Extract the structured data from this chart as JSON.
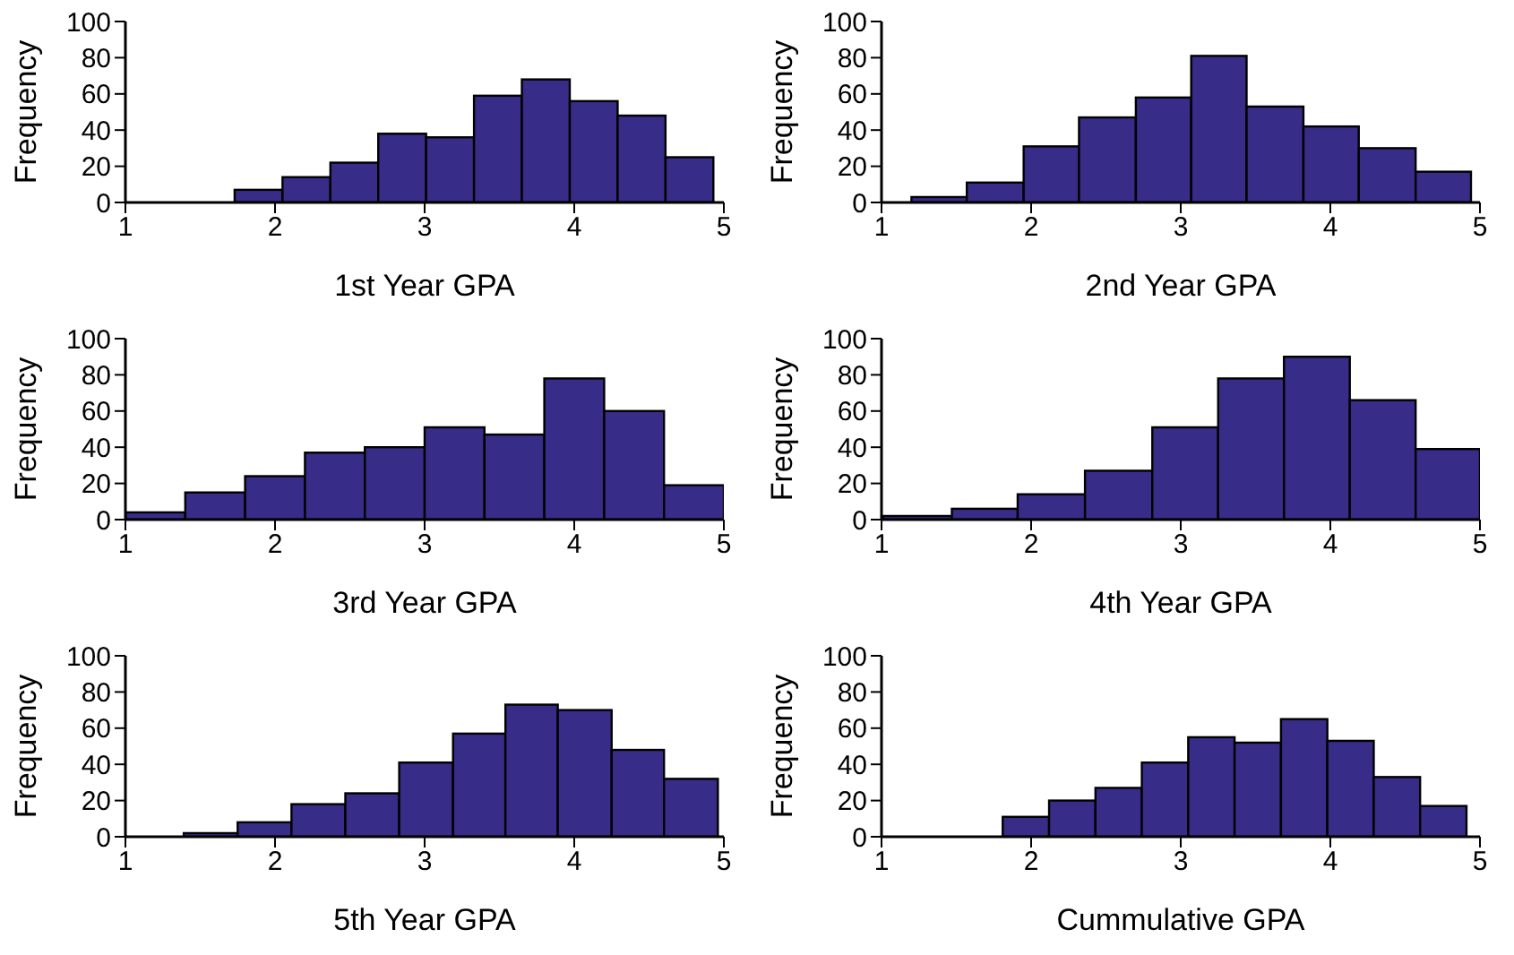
{
  "chart_data": [
    {
      "type": "histogram",
      "xlabel": "1st Year GPA",
      "ylabel": "Frequency",
      "bins": [
        1.73,
        2.05,
        2.37,
        2.69,
        3.01,
        3.33,
        3.65,
        3.97,
        4.29,
        4.61,
        4.93
      ],
      "values": [
        7,
        14,
        22,
        38,
        36,
        59,
        68,
        56,
        48,
        25
      ],
      "color": "#372c87",
      "xlim": [
        1,
        5
      ],
      "xticks": [
        1,
        2,
        3,
        4,
        5
      ],
      "ylim": [
        0,
        100
      ],
      "yticks": [
        0,
        20,
        40,
        60,
        80,
        100
      ]
    },
    {
      "type": "histogram",
      "xlabel": "2nd Year GPA",
      "ylabel": "Frequency",
      "bins": [
        1.2,
        1.57,
        1.95,
        2.32,
        2.7,
        3.07,
        3.44,
        3.82,
        4.19,
        4.57,
        4.94
      ],
      "values": [
        3,
        11,
        31,
        47,
        58,
        81,
        53,
        42,
        30,
        17
      ],
      "color": "#372c87",
      "xlim": [
        1,
        5
      ],
      "xticks": [
        1,
        2,
        3,
        4,
        5
      ],
      "ylim": [
        0,
        100
      ],
      "yticks": [
        0,
        20,
        40,
        60,
        80,
        100
      ]
    },
    {
      "type": "histogram",
      "xlabel": "3rd Year GPA",
      "ylabel": "Frequency",
      "bins": [
        1,
        1.4,
        1.8,
        2.2,
        2.6,
        3,
        3.4,
        3.8,
        4.2,
        4.6,
        5
      ],
      "values": [
        4,
        15,
        24,
        37,
        40,
        51,
        47,
        78,
        60,
        19
      ],
      "color": "#372c87",
      "xlim": [
        1,
        5
      ],
      "xticks": [
        1,
        2,
        3,
        4,
        5
      ],
      "ylim": [
        0,
        100
      ],
      "yticks": [
        0,
        20,
        40,
        60,
        80,
        100
      ]
    },
    {
      "type": "histogram",
      "xlabel": "4th Year GPA",
      "ylabel": "Frequency",
      "bins": [
        1.01,
        1.47,
        1.91,
        2.36,
        2.81,
        3.25,
        3.69,
        4.13,
        4.57,
        5
      ],
      "values": [
        2,
        6,
        14,
        27,
        51,
        78,
        90,
        66,
        39
      ],
      "color": "#372c87",
      "xlim": [
        1,
        5
      ],
      "xticks": [
        1,
        2,
        3,
        4,
        5
      ],
      "ylim": [
        0,
        100
      ],
      "yticks": [
        0,
        20,
        40,
        60,
        80,
        100
      ]
    },
    {
      "type": "histogram",
      "xlabel": "5th Year GPA",
      "ylabel": "Frequency",
      "bins": [
        1.39,
        1.75,
        2.11,
        2.47,
        2.83,
        3.19,
        3.54,
        3.89,
        4.25,
        4.6,
        4.96
      ],
      "values": [
        2,
        8,
        18,
        24,
        41,
        57,
        73,
        70,
        48,
        32
      ],
      "color": "#372c87",
      "xlim": [
        1,
        5
      ],
      "xticks": [
        1,
        2,
        3,
        4,
        5
      ],
      "ylim": [
        0,
        100
      ],
      "yticks": [
        0,
        20,
        40,
        60,
        80,
        100
      ]
    },
    {
      "type": "histogram",
      "xlabel": "Cummulative GPA",
      "ylabel": "Frequency",
      "bins": [
        1.81,
        2.12,
        2.43,
        2.74,
        3.05,
        3.36,
        3.67,
        3.98,
        4.29,
        4.6,
        4.91
      ],
      "values": [
        11,
        20,
        27,
        41,
        55,
        52,
        65,
        53,
        33,
        17
      ],
      "color": "#372c87",
      "xlim": [
        1,
        5
      ],
      "xticks": [
        1,
        2,
        3,
        4,
        5
      ],
      "ylim": [
        0,
        100
      ],
      "yticks": [
        0,
        20,
        40,
        60,
        80,
        100
      ]
    }
  ]
}
